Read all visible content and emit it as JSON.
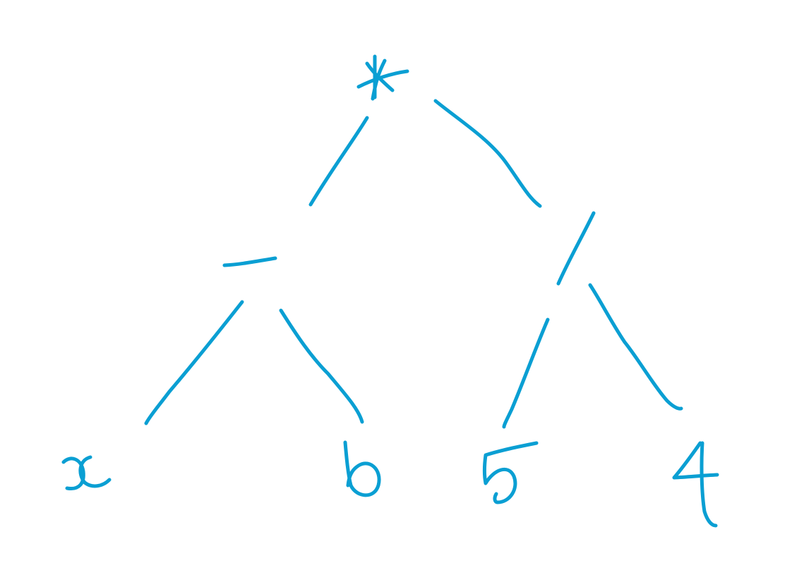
{
  "diagram": {
    "type": "expression-tree",
    "ink_color": "#0a9fd3",
    "background": "#ffffff",
    "nodes": [
      {
        "id": "n_root",
        "label": "*"
      },
      {
        "id": "n_sub",
        "label": "−"
      },
      {
        "id": "n_div",
        "label": "/"
      },
      {
        "id": "n_x",
        "label": "x"
      },
      {
        "id": "n_b",
        "label": "b"
      },
      {
        "id": "n_5",
        "label": "5"
      },
      {
        "id": "n_4",
        "label": "4"
      }
    ],
    "edges": [
      {
        "from": "n_root",
        "to": "n_sub"
      },
      {
        "from": "n_root",
        "to": "n_div"
      },
      {
        "from": "n_sub",
        "to": "n_x"
      },
      {
        "from": "n_sub",
        "to": "n_b"
      },
      {
        "from": "n_div",
        "to": "n_5"
      },
      {
        "from": "n_div",
        "to": "n_4"
      }
    ]
  }
}
